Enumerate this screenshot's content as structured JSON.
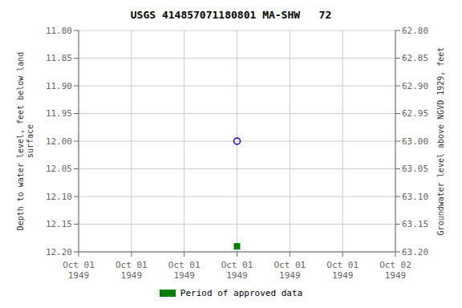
{
  "chart_data": {
    "type": "scatter",
    "title": "USGS 414857071180801 MA-SHW   72",
    "y_label": "Depth to water level, feet below land\nsurface",
    "y2_label": "Groundwater level above NGVD 1929, feet",
    "categories": [
      "Oct 01\n1949",
      "Oct 01\n1949",
      "Oct 01\n1949",
      "Oct 01\n1949",
      "Oct 01\n1949",
      "Oct 01\n1949",
      "Oct 02\n1949"
    ],
    "series": [
      {
        "color": "#0000cc",
        "marker": "circle",
        "values": [
          null,
          null,
          null,
          12.0,
          null,
          null,
          null
        ]
      },
      {
        "name": "Period of approved data",
        "color": "#008000",
        "marker": "square",
        "values": [
          null,
          null,
          null,
          12.19,
          null,
          null,
          null
        ]
      }
    ],
    "ylim": [
      12.2,
      11.8
    ],
    "yticks": [
      {
        "value": 11.8,
        "label": "11.80"
      },
      11.85,
      {
        "value": 11.9,
        "label": "11.90"
      },
      11.95,
      {
        "value": 12.0,
        "label": "12.00"
      },
      12.05,
      {
        "value": 12.1,
        "label": "12.10"
      },
      12.15,
      {
        "value": 12.2,
        "label": "12.20"
      }
    ],
    "y2lim": [
      63.2,
      62.8
    ],
    "y2ticks": [
      {
        "value": 63.2,
        "label": "63.20"
      },
      63.15,
      {
        "value": 63.1,
        "label": "63.10"
      },
      63.05,
      {
        "value": 63.0,
        "label": "63.00"
      },
      62.95,
      {
        "value": 62.9,
        "label": "62.90"
      },
      62.85,
      {
        "value": 62.8,
        "label": "62.80"
      }
    ],
    "grid": true,
    "legend": "bottom"
  }
}
